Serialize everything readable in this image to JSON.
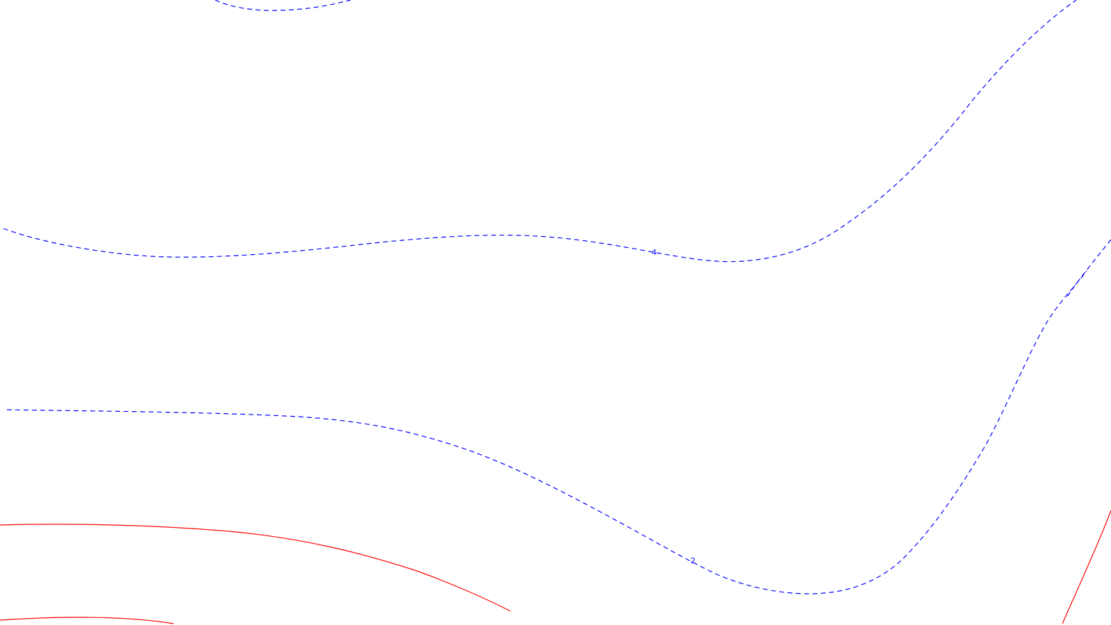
{
  "map": {
    "colors": {
      "background": "#ffffff",
      "negative_contour": "#0000ff",
      "positive_contour": "#ff0000"
    },
    "contours": [
      {
        "id": "neg-top",
        "style": "dashed",
        "color_key": "negative_contour",
        "label": ""
      },
      {
        "id": "neg-4",
        "style": "dashed",
        "color_key": "negative_contour",
        "label": "4"
      },
      {
        "id": "neg-right",
        "style": "dashed",
        "color_key": "negative_contour",
        "label": ""
      },
      {
        "id": "neg-2",
        "style": "dashed",
        "color_key": "negative_contour",
        "label": "2"
      },
      {
        "id": "pos-1",
        "style": "solid",
        "color_key": "positive_contour",
        "label": ""
      },
      {
        "id": "pos-2",
        "style": "solid",
        "color_key": "positive_contour",
        "label": ""
      },
      {
        "id": "pos-3",
        "style": "solid",
        "color_key": "positive_contour",
        "label": ""
      }
    ]
  }
}
